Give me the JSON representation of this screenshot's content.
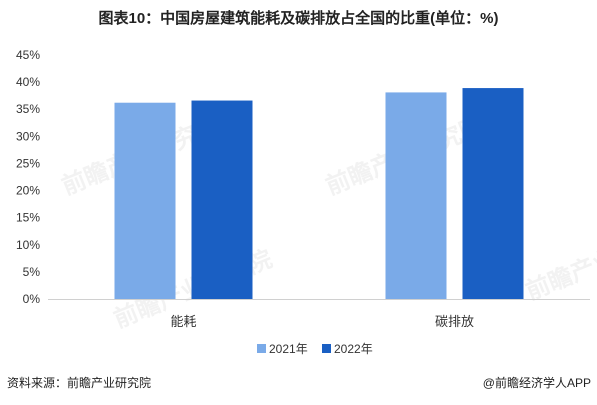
{
  "title": "图表10：中国房屋建筑能耗及碳排放占全国的比重(单位：%)",
  "source": "资料来源：前瞻产业研究院",
  "brand": "@前瞻经济学人APP",
  "watermark": "前瞻产业研究院",
  "chart_data": {
    "type": "bar",
    "categories": [
      "能耗",
      "碳排放"
    ],
    "series": [
      {
        "name": "2021年",
        "values": [
          36.2,
          38.1
        ],
        "color": "#7aaae8"
      },
      {
        "name": "2022年",
        "values": [
          36.6,
          38.9
        ],
        "color": "#1a5fc3"
      }
    ],
    "ylim": [
      0,
      45
    ],
    "yticks": [
      0,
      5,
      10,
      15,
      20,
      25,
      30,
      35,
      40,
      45
    ],
    "ytick_labels": [
      "0%",
      "5%",
      "10%",
      "15%",
      "20%",
      "25%",
      "30%",
      "35%",
      "40%",
      "45%"
    ],
    "grid": false,
    "legend": "bottom"
  }
}
